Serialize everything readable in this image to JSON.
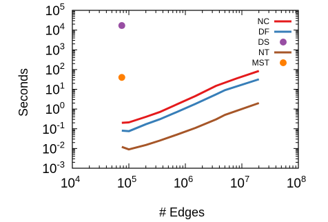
{
  "chart_data": {
    "type": "line",
    "xlabel": "# Edges",
    "ylabel": "Seconds",
    "x_scale": "log",
    "y_scale": "log",
    "xlim": [
      10000,
      100000000
    ],
    "ylim": [
      0.001,
      100000
    ],
    "x_ticks": [
      {
        "base": "10",
        "exp": "4",
        "value": 10000
      },
      {
        "base": "10",
        "exp": "5",
        "value": 100000
      },
      {
        "base": "10",
        "exp": "6",
        "value": 1000000
      },
      {
        "base": "10",
        "exp": "7",
        "value": 10000000
      },
      {
        "base": "10",
        "exp": "8",
        "value": 100000000
      }
    ],
    "y_ticks": [
      {
        "base": "10",
        "exp": "-3",
        "value": 0.001
      },
      {
        "base": "10",
        "exp": "-2",
        "value": 0.01
      },
      {
        "base": "10",
        "exp": "-1",
        "value": 0.1
      },
      {
        "base": "10",
        "exp": "0",
        "value": 1
      },
      {
        "base": "10",
        "exp": "1",
        "value": 10
      },
      {
        "base": "10",
        "exp": "2",
        "value": 100
      },
      {
        "base": "10",
        "exp": "3",
        "value": 1000
      },
      {
        "base": "10",
        "exp": "4",
        "value": 10000
      },
      {
        "base": "10",
        "exp": "5",
        "value": 100000
      }
    ],
    "grid": false,
    "legend_position": "top-right",
    "series": [
      {
        "name": "NC",
        "kind": "line",
        "color": "#e41a1c",
        "x": [
          75000,
          100000,
          200000,
          350000,
          700000,
          1500000,
          3500000,
          8000000,
          20000000
        ],
        "y": [
          0.2,
          0.21,
          0.4,
          0.7,
          1.7,
          4.5,
          15,
          35,
          85
        ]
      },
      {
        "name": "DF",
        "kind": "line",
        "color": "#377eb8",
        "x": [
          75000,
          100000,
          200000,
          350000,
          700000,
          1500000,
          3500000,
          5000000,
          20000000
        ],
        "y": [
          0.08,
          0.075,
          0.17,
          0.3,
          0.7,
          1.8,
          5.5,
          9,
          32
        ]
      },
      {
        "name": "DS",
        "kind": "point",
        "color": "#984ea3",
        "x": [
          75000
        ],
        "y": [
          17000
        ]
      },
      {
        "name": "NT",
        "kind": "line",
        "color": "#a65628",
        "x": [
          75000,
          100000,
          200000,
          350000,
          700000,
          1500000,
          3500000,
          5000000,
          20000000
        ],
        "y": [
          0.012,
          0.009,
          0.015,
          0.025,
          0.05,
          0.11,
          0.3,
          0.5,
          2
        ]
      },
      {
        "name": "MST",
        "kind": "point",
        "color": "#ff7f00",
        "x": [
          75000
        ],
        "y": [
          40
        ]
      }
    ]
  }
}
